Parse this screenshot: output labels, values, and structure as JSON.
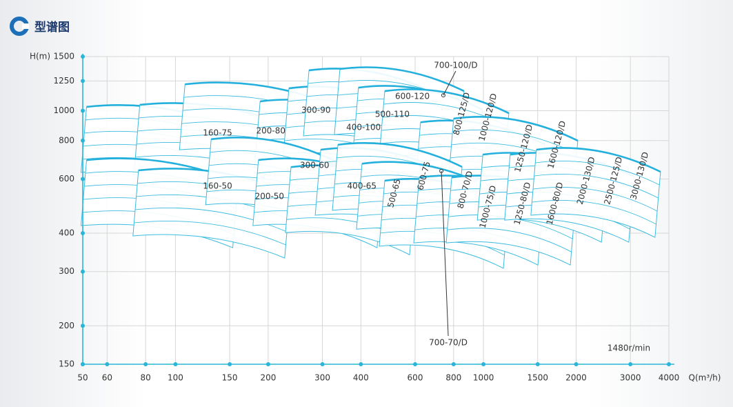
{
  "chart_data": {
    "type": "performance-map",
    "title": "型谱图",
    "y_label": "H(m)",
    "x_label": "Q(m³/h)",
    "annotation": "1480r/min",
    "x_log": true,
    "y_log": true,
    "grid": true,
    "color": "#29b6d8",
    "xlim": [
      50,
      4000
    ],
    "ylim": [
      150,
      1500
    ],
    "xticks": [
      50,
      60,
      80,
      100,
      150,
      200,
      300,
      400,
      600,
      800,
      1000,
      1500,
      2000,
      3000,
      4000
    ],
    "yticks": [
      150,
      200,
      300,
      400,
      600,
      800,
      1000,
      1250,
      1500
    ],
    "models": [
      {
        "name": "160-75",
        "q": 137,
        "h": 846
      },
      {
        "name": "200-80",
        "q": 204,
        "h": 859
      },
      {
        "name": "300-90",
        "q": 286,
        "h": 1002
      },
      {
        "name": "400-100",
        "q": 408,
        "h": 881
      },
      {
        "name": "500-110",
        "q": 506,
        "h": 972
      },
      {
        "name": "600-120",
        "q": 588,
        "h": 1112
      },
      {
        "name": "700-100/D",
        "q": 741,
        "h": 1123
      },
      {
        "name": "800-125/D",
        "q": 851,
        "h": 977
      },
      {
        "name": "1000-120/D",
        "q": 1036,
        "h": 952
      },
      {
        "name": "1250-120/D",
        "q": 1354,
        "h": 754
      },
      {
        "name": "1600-120/D",
        "q": 1734,
        "h": 775
      },
      {
        "name": "160-50",
        "q": 137,
        "h": 568
      },
      {
        "name": "200-50",
        "q": 202,
        "h": 526
      },
      {
        "name": "300-60",
        "q": 283,
        "h": 664
      },
      {
        "name": "400-65",
        "q": 403,
        "h": 568
      },
      {
        "name": "500-65",
        "q": 514,
        "h": 539
      },
      {
        "name": "600-75",
        "q": 642,
        "h": 614
      },
      {
        "name": "700-70/D",
        "q": 730,
        "h": 637
      },
      {
        "name": "800-70/D",
        "q": 874,
        "h": 553
      },
      {
        "name": "1000-75/D",
        "q": 1036,
        "h": 487
      },
      {
        "name": "1250-80/D",
        "q": 1341,
        "h": 499
      },
      {
        "name": "1600-80/D",
        "q": 1709,
        "h": 499
      },
      {
        "name": "2000-130/D",
        "q": 2157,
        "h": 592
      },
      {
        "name": "2500-125/D",
        "q": 2646,
        "h": 592
      },
      {
        "name": "3000-130/D",
        "q": 3219,
        "h": 614
      }
    ]
  }
}
